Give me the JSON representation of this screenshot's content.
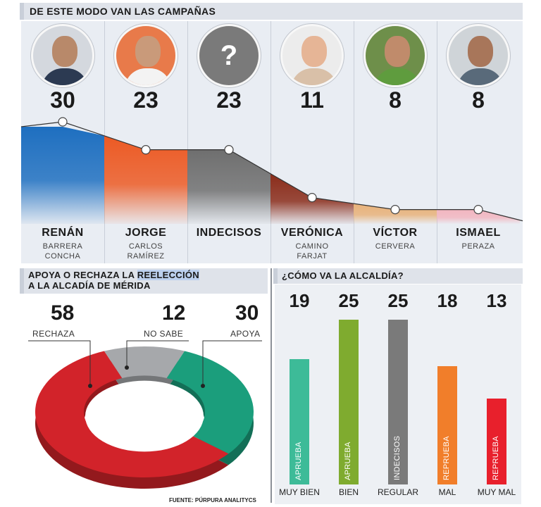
{
  "header_top": "DE ESTE MODO VAN LAS CAMPAÑAS",
  "header_left_pre": "APOYA O RECHAZA LA ",
  "header_left_highlight": "REELECCIÓN",
  "header_left_post": "A LA ALCADÍA DE MÉRIDA",
  "header_right": "¿CÓMO VA LA ALCALDÍA?",
  "source": "FUENTE: PÚRPURA ANALITYCS",
  "question_mark": "?",
  "chart_data": [
    {
      "type": "area",
      "categories": [
        "RENÁN",
        "JORGE",
        "INDECISOS",
        "VERÓNICA",
        "VÍCTOR",
        "ISMAEL"
      ],
      "subtitles": [
        [
          "BARRERA",
          "CONCHA"
        ],
        [
          "CARLOS",
          "RAMÍREZ"
        ],
        [],
        [
          "CAMINO",
          "FARJAT"
        ],
        [
          "CERVERA"
        ],
        [
          "PERAZA"
        ]
      ],
      "values": [
        30,
        23,
        23,
        11,
        8,
        8
      ],
      "colors": [
        "#1e6fc0",
        "#ec5a24",
        "#6f6f6f",
        "#8a2c1a",
        "#e8b27a",
        "#f2b6c0"
      ]
    },
    {
      "type": "pie",
      "labels": [
        "RECHAZA",
        "NO SABE",
        "APOYA"
      ],
      "values": [
        58,
        12,
        30
      ],
      "colors": [
        "#d2232a",
        "#a6a8ab",
        "#1b9e7c"
      ]
    },
    {
      "type": "bar",
      "categories": [
        "MUY BIEN",
        "BIEN",
        "REGULAR",
        "MAL",
        "MUY MAL"
      ],
      "values": [
        19,
        25,
        25,
        18,
        13
      ],
      "bar_labels": [
        "APRUEBA",
        "APRUEBA",
        "INDECISOS",
        "REPRUEBA",
        "REPRUEBA"
      ],
      "colors": [
        "#3dbb98",
        "#7fab2f",
        "#7a7a7a",
        "#f17e2a",
        "#e8202c"
      ],
      "ylim": [
        0,
        25
      ]
    }
  ]
}
